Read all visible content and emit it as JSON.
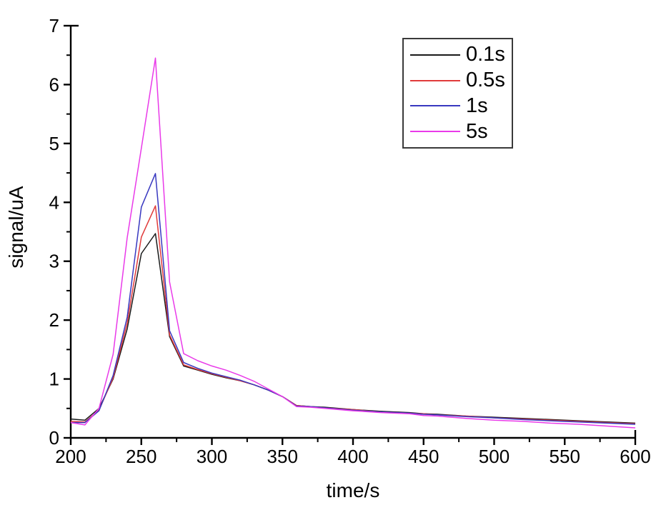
{
  "figure": {
    "background": "#ffffff",
    "axis_color": "#000000"
  },
  "chart_data": {
    "type": "line",
    "title": "",
    "xlabel": "time/s",
    "ylabel": "signal/uA",
    "xlim": [
      200,
      600
    ],
    "ylim": [
      0,
      7
    ],
    "grid": false,
    "legend_position": "top-right",
    "x_major_ticks": [
      200,
      250,
      300,
      350,
      400,
      450,
      500,
      550,
      600
    ],
    "x_minor_ticks": [
      225,
      275,
      325,
      375,
      425,
      475,
      525,
      575
    ],
    "y_major_ticks": [
      0,
      1,
      2,
      3,
      4,
      5,
      6,
      7
    ],
    "y_minor_ticks": [
      0.5,
      1.5,
      2.5,
      3.5,
      4.5,
      5.5,
      6.5
    ],
    "x": [
      200,
      210,
      220,
      230,
      240,
      250,
      260,
      270,
      280,
      290,
      300,
      310,
      320,
      330,
      340,
      350,
      360,
      370,
      380,
      400,
      420,
      440,
      450,
      460,
      480,
      500,
      520,
      540,
      560,
      580,
      600
    ],
    "series": [
      {
        "name": "0.1s",
        "color": "#1a1a1a",
        "values": [
          0.32,
          0.3,
          0.5,
          1.0,
          1.85,
          3.13,
          3.47,
          1.72,
          1.22,
          1.15,
          1.08,
          1.02,
          0.97,
          0.9,
          0.81,
          0.7,
          0.55,
          0.53,
          0.52,
          0.48,
          0.45,
          0.43,
          0.41,
          0.4,
          0.37,
          0.35,
          0.33,
          0.31,
          0.29,
          0.27,
          0.25
        ]
      },
      {
        "name": "0.5s",
        "color": "#e03a3a",
        "values": [
          0.28,
          0.27,
          0.47,
          1.02,
          1.95,
          3.41,
          3.94,
          1.75,
          1.24,
          1.16,
          1.09,
          1.03,
          0.97,
          0.9,
          0.81,
          0.7,
          0.55,
          0.53,
          0.51,
          0.48,
          0.44,
          0.42,
          0.41,
          0.39,
          0.37,
          0.34,
          0.32,
          0.3,
          0.28,
          0.26,
          0.24
        ]
      },
      {
        "name": "1s",
        "color": "#3838c0",
        "values": [
          0.26,
          0.26,
          0.46,
          1.06,
          2.05,
          3.92,
          4.49,
          1.82,
          1.28,
          1.18,
          1.1,
          1.04,
          0.98,
          0.9,
          0.81,
          0.7,
          0.54,
          0.53,
          0.51,
          0.47,
          0.44,
          0.42,
          0.4,
          0.39,
          0.36,
          0.34,
          0.31,
          0.29,
          0.27,
          0.25,
          0.23
        ]
      },
      {
        "name": "5s",
        "color": "#e93ae9",
        "values": [
          0.26,
          0.22,
          0.5,
          1.42,
          3.4,
          4.92,
          6.45,
          2.65,
          1.43,
          1.31,
          1.22,
          1.15,
          1.06,
          0.96,
          0.83,
          0.7,
          0.53,
          0.52,
          0.5,
          0.46,
          0.43,
          0.41,
          0.38,
          0.37,
          0.33,
          0.3,
          0.28,
          0.25,
          0.23,
          0.2,
          0.17
        ]
      }
    ]
  }
}
